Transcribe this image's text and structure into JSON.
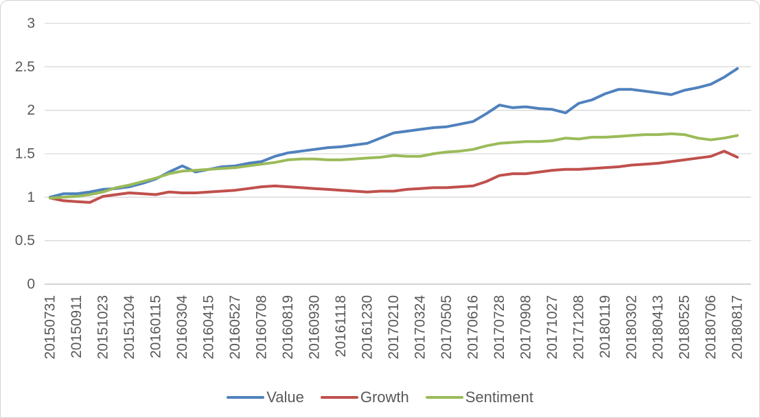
{
  "chart_data": {
    "type": "line",
    "title": "",
    "xlabel": "",
    "ylabel": "",
    "y_range": [
      0,
      3
    ],
    "y_ticks": [
      "3",
      "2.5",
      "2",
      "1.5",
      "1",
      "0.5",
      "0"
    ],
    "grid": "horizontal",
    "legend_position": "bottom",
    "x_labels": [
      "20150731",
      "20150911",
      "20151023",
      "20151204",
      "20160115",
      "20160304",
      "20160415",
      "20160527",
      "20160708",
      "20160819",
      "20160930",
      "20161118",
      "20161230",
      "20170210",
      "20170324",
      "20170505",
      "20170616",
      "20170728",
      "20170908",
      "20171027",
      "20171208",
      "20180119",
      "20180302",
      "20180413",
      "20180525",
      "20180706",
      "20180817"
    ],
    "sampling_note": "values are sampled twice per labeled interval: even indexes fall on x_labels, odd indexes are midpoints",
    "series": [
      {
        "name": "Value",
        "color": "#4F81BD",
        "values": [
          1.0,
          1.04,
          1.04,
          1.06,
          1.09,
          1.1,
          1.12,
          1.16,
          1.21,
          1.29,
          1.36,
          1.29,
          1.32,
          1.35,
          1.36,
          1.39,
          1.41,
          1.47,
          1.51,
          1.53,
          1.55,
          1.57,
          1.58,
          1.6,
          1.62,
          1.68,
          1.74,
          1.76,
          1.78,
          1.8,
          1.81,
          1.84,
          1.87,
          1.96,
          2.06,
          2.03,
          2.04,
          2.02,
          2.01,
          1.97,
          2.08,
          2.12,
          2.19,
          2.24,
          2.24,
          2.22,
          2.2,
          2.18,
          2.23,
          2.26,
          2.3,
          2.38,
          2.48
        ]
      },
      {
        "name": "Growth",
        "color": "#C0504D",
        "values": [
          0.99,
          0.96,
          0.95,
          0.94,
          1.01,
          1.03,
          1.05,
          1.04,
          1.03,
          1.06,
          1.05,
          1.05,
          1.06,
          1.07,
          1.08,
          1.1,
          1.12,
          1.13,
          1.12,
          1.11,
          1.1,
          1.09,
          1.08,
          1.07,
          1.06,
          1.07,
          1.07,
          1.09,
          1.1,
          1.11,
          1.11,
          1.12,
          1.13,
          1.18,
          1.25,
          1.27,
          1.27,
          1.29,
          1.31,
          1.32,
          1.32,
          1.33,
          1.34,
          1.35,
          1.37,
          1.38,
          1.39,
          1.41,
          1.43,
          1.45,
          1.47,
          1.53,
          1.46
        ]
      },
      {
        "name": "Sentiment",
        "color": "#9BBB59",
        "values": [
          0.99,
          1.0,
          1.01,
          1.03,
          1.06,
          1.11,
          1.14,
          1.18,
          1.22,
          1.27,
          1.3,
          1.31,
          1.32,
          1.33,
          1.34,
          1.36,
          1.38,
          1.4,
          1.43,
          1.44,
          1.44,
          1.43,
          1.43,
          1.44,
          1.45,
          1.46,
          1.48,
          1.47,
          1.47,
          1.5,
          1.52,
          1.53,
          1.55,
          1.59,
          1.62,
          1.63,
          1.64,
          1.64,
          1.65,
          1.68,
          1.67,
          1.69,
          1.69,
          1.7,
          1.71,
          1.72,
          1.72,
          1.73,
          1.72,
          1.68,
          1.66,
          1.68,
          1.71
        ]
      }
    ],
    "colors": {
      "axis_text": "#595959",
      "gridline": "#D9D9D9",
      "axis_line": "#BFBFBF",
      "background": "#FFFFFF",
      "frame_border": "#D3D3D3"
    }
  }
}
